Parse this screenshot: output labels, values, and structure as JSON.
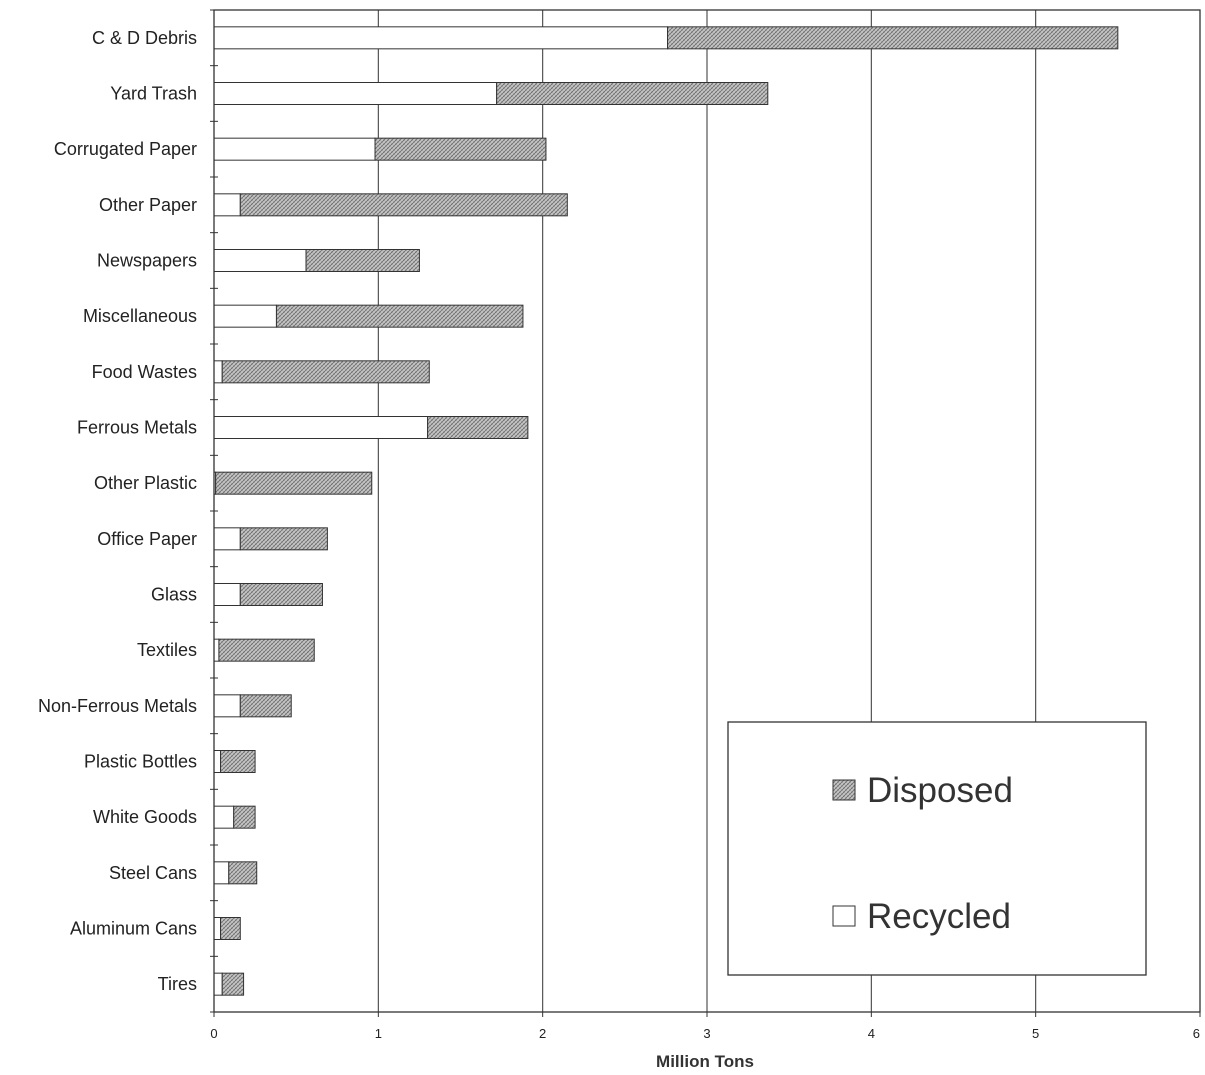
{
  "chart_data": {
    "type": "bar",
    "orientation": "horizontal",
    "stacked": true,
    "categories": [
      "C & D Debris",
      "Yard Trash",
      "Corrugated Paper",
      "Other Paper",
      "Newspapers",
      "Miscellaneous",
      "Food Wastes",
      "Ferrous Metals",
      "Other Plastic",
      "Office Paper",
      "Glass",
      "Textiles",
      "Non-Ferrous Metals",
      "Plastic Bottles",
      "White Goods",
      "Steel Cans",
      "Aluminum Cans",
      "Tires"
    ],
    "series": [
      {
        "name": "Recycled",
        "values": [
          2.76,
          1.72,
          0.98,
          0.16,
          0.56,
          0.38,
          0.05,
          1.3,
          0.01,
          0.16,
          0.16,
          0.03,
          0.16,
          0.04,
          0.12,
          0.09,
          0.04,
          0.05
        ],
        "color": "#ffffff",
        "pattern": "none"
      },
      {
        "name": "Disposed",
        "values": [
          2.74,
          1.65,
          1.04,
          1.99,
          0.69,
          1.5,
          1.26,
          0.61,
          0.95,
          0.53,
          0.5,
          0.58,
          0.31,
          0.21,
          0.13,
          0.17,
          0.12,
          0.13
        ],
        "color": "#bdbdbd",
        "pattern": "crosshatch"
      }
    ],
    "xlabel": "Million Tons",
    "ylabel": "",
    "xlim": [
      0,
      6
    ],
    "xticks": [
      "0",
      "1",
      "2",
      "3",
      "4",
      "5",
      "6"
    ],
    "grid": "vertical",
    "legend": {
      "placement": "bottom-right",
      "entries": [
        "Disposed",
        "Recycled"
      ]
    }
  }
}
